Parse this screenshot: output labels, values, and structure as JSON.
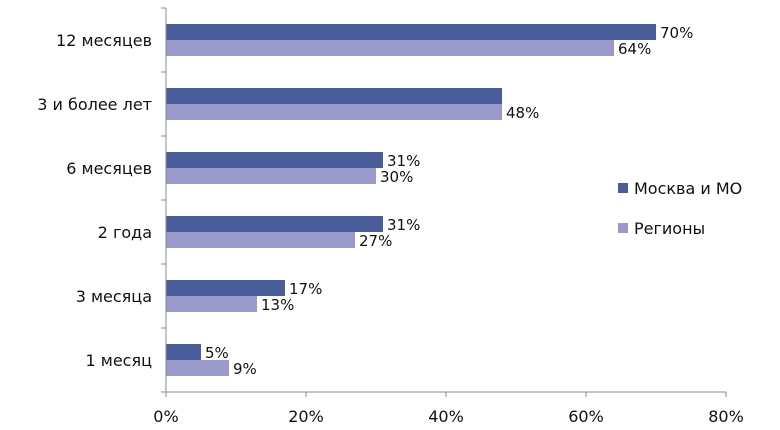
{
  "chart_data": {
    "type": "bar",
    "orientation": "horizontal",
    "categories": [
      "12 месяцев",
      "3 и более лет",
      "6 месяцев",
      "2 года",
      "3 месяца",
      "1 месяц"
    ],
    "series": [
      {
        "name": "Москва и МО",
        "values": [
          70,
          48,
          31,
          31,
          17,
          5
        ],
        "labels": [
          "70%",
          "",
          "31%",
          "31%",
          "17%",
          "5%"
        ],
        "color": "#4a5d9b"
      },
      {
        "name": "Регионы",
        "values": [
          64,
          48,
          30,
          27,
          13,
          9
        ],
        "labels": [
          "64%",
          "48%",
          "30%",
          "27%",
          "13%",
          "9%"
        ],
        "color": "#9999cc"
      }
    ],
    "xlim": [
      0,
      80
    ],
    "xticks": [
      "0%",
      "20%",
      "40%",
      "60%",
      "80%"
    ],
    "grid": false,
    "legend_position": "right"
  }
}
